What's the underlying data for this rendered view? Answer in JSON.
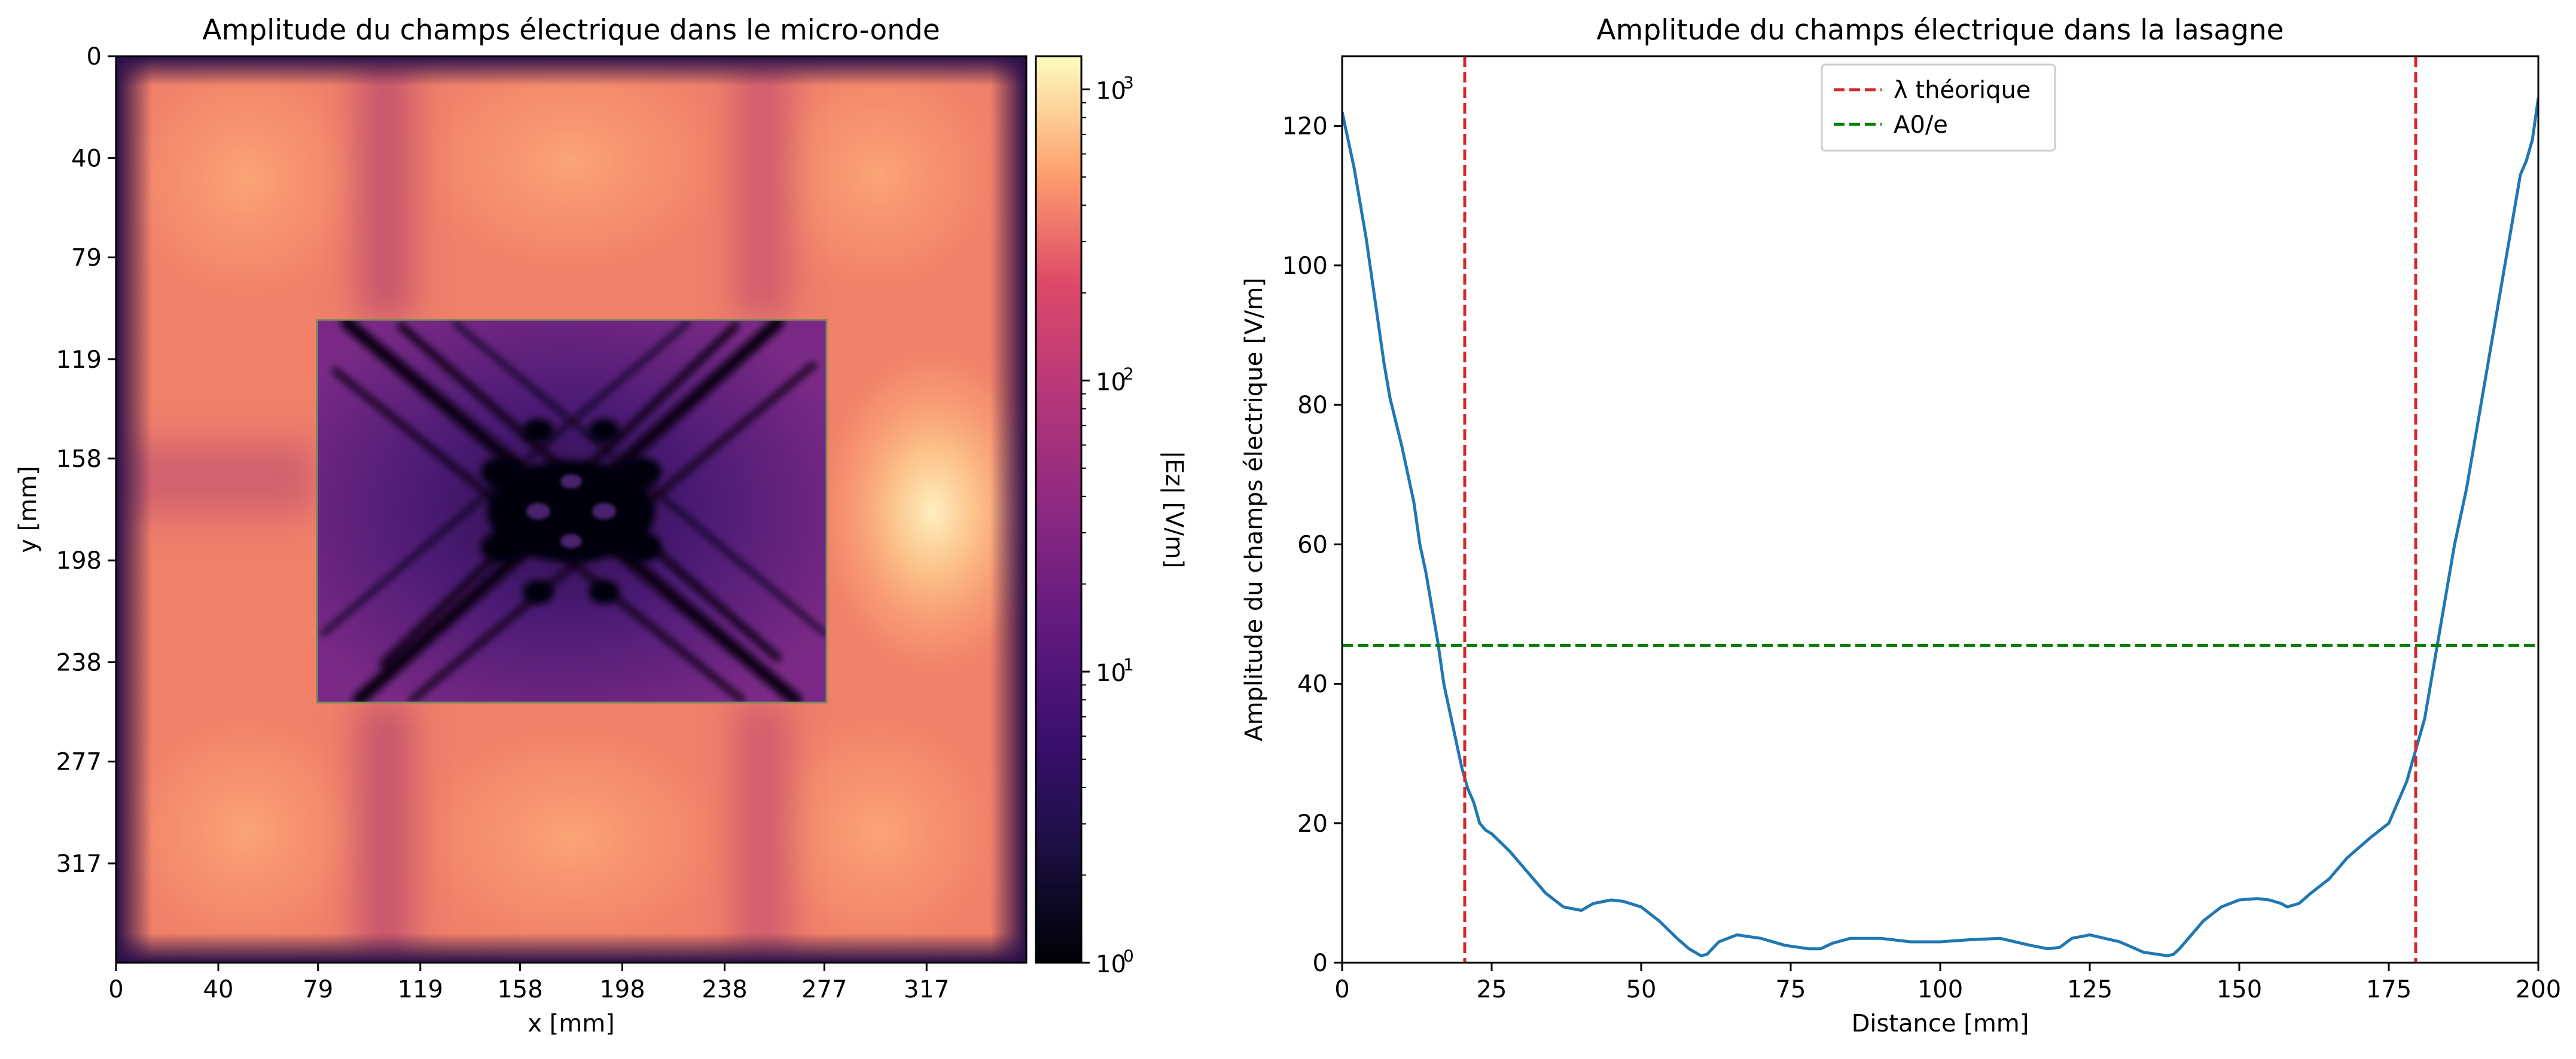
{
  "chart_data": [
    {
      "type": "heatmap",
      "title": "Amplitude du champs électrique dans le micro-onde",
      "xlabel": "x [mm]",
      "ylabel": "y [mm]",
      "xticks": [
        "0",
        "40",
        "79",
        "119",
        "158",
        "198",
        "238",
        "277",
        "317"
      ],
      "yticks": [
        "0",
        "40",
        "79",
        "119",
        "158",
        "198",
        "238",
        "277",
        "317"
      ],
      "xlim": [
        0,
        356
      ],
      "ylim": [
        356,
        0
      ],
      "colormap": "magma",
      "colorbar": {
        "label": "|Ez| [V/m]",
        "scale": "log",
        "range": [
          1,
          1300
        ],
        "ticks": [
          "10",
          "10",
          "10",
          "10"
        ],
        "tick_exponents": [
          "3",
          "2",
          "1",
          "0"
        ]
      },
      "colors": {
        "edge": "#2a0f4a",
        "background_field": "#f0806a",
        "lobe": "#fb9a70",
        "hotspot": "#fde0a0",
        "lasagna_field": "#5a2380",
        "lasagna_edge": "#9a3c86",
        "dark_lines": "#0b0518",
        "lasagna_outline": "#7a8a5a"
      },
      "lasagna_region_mm": {
        "x": [
          79,
          277
        ],
        "y": [
          103,
          252
        ]
      },
      "hotspot_mm": {
        "x": 320,
        "y": 178
      }
    },
    {
      "type": "line",
      "title": "Amplitude du champs électrique dans la lasagne",
      "xlabel": "Distance [mm]",
      "ylabel": "Amplitude du champs électrique [V/m]",
      "xlim": [
        0,
        200
      ],
      "ylim": [
        0,
        130
      ],
      "xticks": [
        "0",
        "25",
        "50",
        "75",
        "100",
        "125",
        "150",
        "175",
        "200"
      ],
      "yticks": [
        "0",
        "20",
        "40",
        "60",
        "80",
        "100",
        "120"
      ],
      "legend_position": "upper center",
      "legend": [
        {
          "label": "λ théorique",
          "color": "#d62728",
          "style": "dashed"
        },
        {
          "label": "A0/e",
          "color": "#008000",
          "style": "dashed"
        }
      ],
      "vlines": [
        20.5,
        179.5
      ],
      "hline": 45.5,
      "line_color": "#1f77b4",
      "series": [
        {
          "x": [
            0,
            1,
            2,
            3,
            4,
            5,
            6,
            7,
            8,
            10,
            12,
            13,
            14,
            15,
            16,
            17,
            18,
            19,
            20,
            21,
            22,
            23,
            24,
            25,
            28,
            31,
            34,
            37,
            40,
            42,
            45,
            47,
            50,
            53,
            56,
            58,
            60,
            61,
            63,
            66,
            70,
            74,
            78,
            80,
            82,
            85,
            90,
            95,
            100,
            105,
            110,
            115,
            118,
            120,
            122,
            125,
            130,
            134,
            138,
            139,
            140,
            142,
            144,
            147,
            150,
            153,
            155,
            157,
            158,
            160,
            162,
            165,
            168,
            172,
            175,
            176,
            177,
            178,
            179,
            180,
            181,
            182,
            183,
            184,
            185,
            186,
            187,
            188,
            189,
            190,
            191,
            192,
            193,
            194,
            195,
            196,
            197,
            198,
            199,
            200
          ],
          "y": [
            122,
            118,
            114,
            109,
            104,
            98,
            92,
            86,
            81,
            74,
            66,
            60,
            56,
            51,
            46,
            40,
            36,
            32,
            28,
            25,
            23,
            20,
            19,
            18.5,
            16,
            13,
            10,
            8,
            7.5,
            8.5,
            9,
            8.8,
            8,
            6,
            3.5,
            2,
            1,
            1.2,
            3,
            4,
            3.5,
            2.5,
            2,
            2,
            2.8,
            3.5,
            3.5,
            3,
            3,
            3.3,
            3.5,
            2.5,
            2,
            2.2,
            3.5,
            4,
            3,
            1.5,
            1,
            1.2,
            2,
            4,
            6,
            8,
            9,
            9.2,
            9,
            8.5,
            8,
            8.5,
            10,
            12,
            15,
            18,
            20,
            22,
            24,
            26,
            29,
            32,
            35,
            40,
            45,
            50,
            55,
            60,
            64,
            68,
            73,
            78,
            83,
            88,
            93,
            98,
            103,
            108,
            113,
            115,
            118,
            124
          ]
        }
      ]
    }
  ]
}
